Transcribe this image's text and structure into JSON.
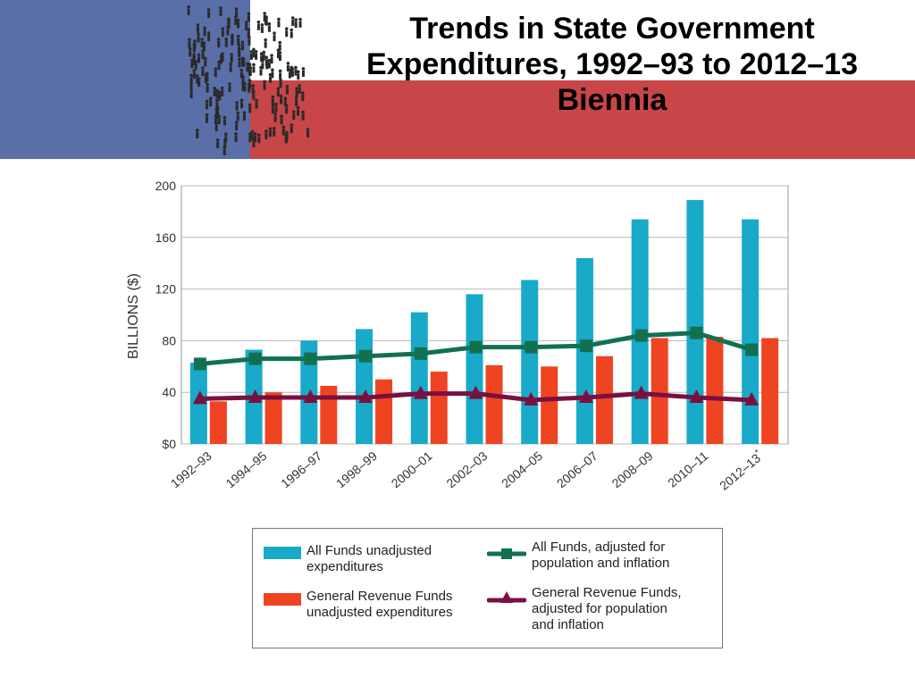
{
  "title": "Trends in State Government Expenditures, 1992–93 to 2012–13 Biennia",
  "colors": {
    "banner_blue": "#5a6fa8",
    "banner_red": "#c84548",
    "all_funds_bar": "#18aac8",
    "general_revenue_bar": "#ee4422",
    "all_funds_adjusted_line": "#127050",
    "general_revenue_adjusted_line": "#7a1040"
  },
  "chart_data": {
    "type": "bar",
    "ylabel": "BILLIONS ($)",
    "ylim": [
      0,
      200
    ],
    "yticks": [
      0,
      40,
      80,
      120,
      160,
      200
    ],
    "ytick_labels": [
      "$0",
      "40",
      "80",
      "120",
      "160",
      "200"
    ],
    "grid": true,
    "categories": [
      "1992–93",
      "1994–95",
      "1996–97",
      "1998–99",
      "2000–01",
      "2002–03",
      "2004–05",
      "2006–07",
      "2008–09",
      "2010–11",
      "2012–13*"
    ],
    "series": [
      {
        "name": "All Funds unadjusted expenditures",
        "kind": "bar",
        "color": "#18aac8",
        "values": [
          63,
          73,
          80,
          89,
          102,
          116,
          127,
          144,
          174,
          189,
          174
        ]
      },
      {
        "name": "General Revenue Funds unadjusted expenditures",
        "kind": "bar",
        "color": "#ee4422",
        "values": [
          33,
          40,
          45,
          50,
          56,
          61,
          60,
          68,
          82,
          83,
          82
        ]
      },
      {
        "name": "All Funds, adjusted for population and inflation",
        "kind": "line",
        "marker": "square",
        "color": "#127050",
        "values": [
          62,
          66,
          66,
          68,
          70,
          75,
          75,
          76,
          84,
          86,
          73
        ]
      },
      {
        "name": "General Revenue Funds, adjusted for population and inflation",
        "kind": "line",
        "marker": "triangle",
        "color": "#7a1040",
        "values": [
          35,
          36,
          36,
          36,
          39,
          39,
          34,
          36,
          39,
          36,
          34
        ]
      }
    ]
  },
  "legend": {
    "items": [
      {
        "label": "All Funds unadjusted\nexpenditures"
      },
      {
        "label": "General Revenue Funds\nunadjusted expenditures"
      },
      {
        "label": "All Funds, adjusted for\npopulation and inflation"
      },
      {
        "label": "General Revenue Funds,\nadjusted for population\nand inflation"
      }
    ]
  }
}
